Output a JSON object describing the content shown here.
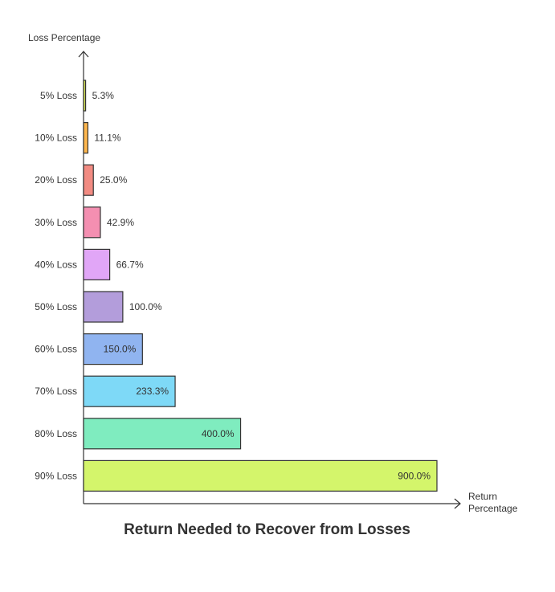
{
  "chart_data": {
    "type": "bar",
    "orientation": "horizontal",
    "title": "Return Needed to Recover from Losses",
    "ylabel": "Loss Percentage",
    "xlabel_lines": [
      "Return",
      "Percentage"
    ],
    "categories": [
      "5% Loss",
      "10% Loss",
      "20% Loss",
      "30% Loss",
      "40% Loss",
      "50% Loss",
      "60% Loss",
      "70% Loss",
      "80% Loss",
      "90% Loss"
    ],
    "values": [
      5.3,
      11.1,
      25.0,
      42.9,
      66.7,
      100.0,
      150.0,
      233.3,
      400.0,
      900.0
    ],
    "value_labels": [
      "5.3%",
      "11.1%",
      "25.0%",
      "42.9%",
      "66.7%",
      "100.0%",
      "150.0%",
      "233.3%",
      "400.0%",
      "900.0%"
    ],
    "xlim": [
      0,
      900
    ],
    "colors": [
      "#d4e157",
      "#ffb74d",
      "#f28b82",
      "#f48fb1",
      "#e1a6f7",
      "#b39ddb",
      "#90b4f0",
      "#7ed9f7",
      "#7fecbf",
      "#d4f56b"
    ],
    "grid": false,
    "legend": "none"
  }
}
